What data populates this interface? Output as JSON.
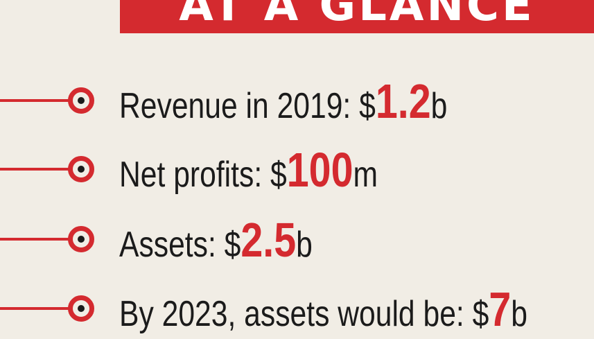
{
  "banner": {
    "title": "AT A GLANCE"
  },
  "items": [
    {
      "label": "Revenue in 2019: $",
      "value": "1.2",
      "unit": "b"
    },
    {
      "label": "Net profits: $",
      "value": "100",
      "unit": "m"
    },
    {
      "label": "Assets: $",
      "value": "2.5",
      "unit": "b"
    },
    {
      "label": "By 2023, assets would be: $",
      "value": "7",
      "unit": "b"
    }
  ],
  "colors": {
    "accent": "#d42a2f",
    "background": "#f1ede5",
    "text": "#1b1b1b"
  }
}
